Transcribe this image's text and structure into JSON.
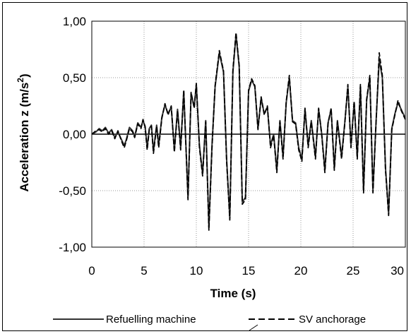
{
  "chart_data": {
    "type": "line",
    "xlabel": "Time (s)",
    "ylabel": "Acceleration z (m/s²)",
    "ylabel_base": "Acceleration z (m/s",
    "ylabel_sup": "2",
    "ylabel_close": ")",
    "xlim": [
      0,
      30
    ],
    "ylim": [
      -1.0,
      1.0
    ],
    "xticks": [
      "0",
      "5",
      "10",
      "15",
      "20",
      "25",
      "30"
    ],
    "yticks": [
      "1,00",
      "0,50",
      "0,00",
      "-0,50",
      "-1,00"
    ],
    "grid": true,
    "legend_position": "bottom",
    "series": [
      {
        "name": "Refuelling machine",
        "style": "solid",
        "color": "#333333",
        "points": [
          [
            0,
            0
          ],
          [
            0.4,
            0.02
          ],
          [
            0.7,
            0.05
          ],
          [
            1.0,
            0.03
          ],
          [
            1.3,
            0.06
          ],
          [
            1.6,
            0.01
          ],
          [
            1.9,
            0.04
          ],
          [
            2.2,
            -0.03
          ],
          [
            2.5,
            0.02
          ],
          [
            2.8,
            -0.04
          ],
          [
            3.1,
            -0.1
          ],
          [
            3.3,
            -0.05
          ],
          [
            3.6,
            0.06
          ],
          [
            3.9,
            0.03
          ],
          [
            4.1,
            -0.02
          ],
          [
            4.4,
            0.1
          ],
          [
            4.7,
            0.06
          ],
          [
            4.9,
            0.12
          ],
          [
            5.1,
            0.07
          ],
          [
            5.3,
            -0.12
          ],
          [
            5.5,
            0.05
          ],
          [
            5.7,
            0.08
          ],
          [
            5.9,
            -0.15
          ],
          [
            6.2,
            0.08
          ],
          [
            6.4,
            -0.1
          ],
          [
            6.7,
            0.15
          ],
          [
            7.0,
            0.26
          ],
          [
            7.3,
            0.18
          ],
          [
            7.6,
            0.24
          ],
          [
            7.9,
            -0.14
          ],
          [
            8.2,
            0.22
          ],
          [
            8.5,
            -0.12
          ],
          [
            8.8,
            0.38
          ],
          [
            9.2,
            -0.56
          ],
          [
            9.5,
            0.36
          ],
          [
            9.8,
            0.24
          ],
          [
            10.0,
            0.44
          ],
          [
            10.3,
            -0.1
          ],
          [
            10.6,
            -0.35
          ],
          [
            10.9,
            0.12
          ],
          [
            11.2,
            -0.82
          ],
          [
            11.5,
            -0.1
          ],
          [
            11.8,
            0.42
          ],
          [
            12.2,
            0.72
          ],
          [
            12.6,
            0.55
          ],
          [
            12.9,
            -0.22
          ],
          [
            13.2,
            -0.74
          ],
          [
            13.5,
            0.55
          ],
          [
            13.8,
            0.88
          ],
          [
            14.1,
            0.6
          ],
          [
            14.4,
            -0.6
          ],
          [
            14.7,
            -0.56
          ],
          [
            15.0,
            0.38
          ],
          [
            15.3,
            0.48
          ],
          [
            15.6,
            0.42
          ],
          [
            15.9,
            0.05
          ],
          [
            16.2,
            0.32
          ],
          [
            16.5,
            0.18
          ],
          [
            16.8,
            0.24
          ],
          [
            17.1,
            -0.1
          ],
          [
            17.4,
            0.0
          ],
          [
            17.7,
            -0.32
          ],
          [
            18.0,
            0.12
          ],
          [
            18.3,
            -0.2
          ],
          [
            18.6,
            0.28
          ],
          [
            18.9,
            0.5
          ],
          [
            19.2,
            0.12
          ],
          [
            19.5,
            0.1
          ],
          [
            19.8,
            -0.12
          ],
          [
            20.1,
            -0.22
          ],
          [
            20.4,
            0.22
          ],
          [
            20.7,
            -0.1
          ],
          [
            21.0,
            0.12
          ],
          [
            21.4,
            -0.2
          ],
          [
            21.7,
            0.22
          ],
          [
            22.0,
            0.0
          ],
          [
            22.3,
            -0.32
          ],
          [
            22.6,
            0.1
          ],
          [
            22.9,
            0.22
          ],
          [
            23.2,
            -0.3
          ],
          [
            23.5,
            0.12
          ],
          [
            23.9,
            -0.2
          ],
          [
            24.2,
            0.1
          ],
          [
            24.5,
            0.42
          ],
          [
            24.8,
            -0.1
          ],
          [
            25.1,
            0.28
          ],
          [
            25.4,
            -0.2
          ],
          [
            25.7,
            0.42
          ],
          [
            26.0,
            -0.5
          ],
          [
            26.3,
            0.3
          ],
          [
            26.6,
            0.5
          ],
          [
            26.9,
            -0.5
          ],
          [
            27.2,
            0.12
          ],
          [
            27.5,
            0.66
          ],
          [
            27.8,
            0.5
          ],
          [
            28.1,
            -0.3
          ],
          [
            28.4,
            -0.7
          ],
          [
            28.7,
            0.05
          ],
          [
            29.0,
            0.18
          ],
          [
            29.3,
            0.28
          ],
          [
            29.6,
            0.22
          ],
          [
            30.0,
            0.14
          ]
        ]
      },
      {
        "name": "SV anchorage",
        "style": "dashed",
        "color": "#000000",
        "points": [
          [
            0,
            0
          ],
          [
            0.4,
            0.03
          ],
          [
            0.7,
            0.04
          ],
          [
            1.0,
            0.02
          ],
          [
            1.3,
            0.05
          ],
          [
            1.6,
            0.0
          ],
          [
            1.9,
            0.03
          ],
          [
            2.2,
            -0.04
          ],
          [
            2.5,
            0.03
          ],
          [
            2.8,
            -0.05
          ],
          [
            3.1,
            -0.12
          ],
          [
            3.3,
            -0.06
          ],
          [
            3.6,
            0.05
          ],
          [
            3.9,
            0.02
          ],
          [
            4.1,
            -0.03
          ],
          [
            4.4,
            0.09
          ],
          [
            4.7,
            0.05
          ],
          [
            4.9,
            0.13
          ],
          [
            5.1,
            0.06
          ],
          [
            5.3,
            -0.14
          ],
          [
            5.5,
            0.04
          ],
          [
            5.7,
            0.07
          ],
          [
            5.9,
            -0.17
          ],
          [
            6.2,
            0.07
          ],
          [
            6.4,
            -0.12
          ],
          [
            6.7,
            0.14
          ],
          [
            7.0,
            0.27
          ],
          [
            7.3,
            0.17
          ],
          [
            7.6,
            0.25
          ],
          [
            7.9,
            -0.16
          ],
          [
            8.2,
            0.21
          ],
          [
            8.5,
            -0.14
          ],
          [
            8.8,
            0.39
          ],
          [
            9.2,
            -0.58
          ],
          [
            9.5,
            0.37
          ],
          [
            9.8,
            0.23
          ],
          [
            10.0,
            0.45
          ],
          [
            10.3,
            -0.12
          ],
          [
            10.6,
            -0.37
          ],
          [
            10.9,
            0.11
          ],
          [
            11.2,
            -0.85
          ],
          [
            11.5,
            -0.12
          ],
          [
            11.8,
            0.43
          ],
          [
            12.2,
            0.74
          ],
          [
            12.6,
            0.56
          ],
          [
            12.9,
            -0.24
          ],
          [
            13.2,
            -0.76
          ],
          [
            13.5,
            0.57
          ],
          [
            13.8,
            0.9
          ],
          [
            14.1,
            0.61
          ],
          [
            14.4,
            -0.62
          ],
          [
            14.7,
            -0.58
          ],
          [
            15.0,
            0.39
          ],
          [
            15.3,
            0.49
          ],
          [
            15.6,
            0.43
          ],
          [
            15.9,
            0.04
          ],
          [
            16.2,
            0.33
          ],
          [
            16.5,
            0.17
          ],
          [
            16.8,
            0.25
          ],
          [
            17.1,
            -0.12
          ],
          [
            17.4,
            -0.01
          ],
          [
            17.7,
            -0.34
          ],
          [
            18.0,
            0.11
          ],
          [
            18.3,
            -0.22
          ],
          [
            18.6,
            0.29
          ],
          [
            18.9,
            0.52
          ],
          [
            19.2,
            0.11
          ],
          [
            19.5,
            0.09
          ],
          [
            19.8,
            -0.14
          ],
          [
            20.1,
            -0.24
          ],
          [
            20.4,
            0.23
          ],
          [
            20.7,
            -0.12
          ],
          [
            21.0,
            0.11
          ],
          [
            21.4,
            -0.22
          ],
          [
            21.7,
            0.23
          ],
          [
            22.0,
            -0.01
          ],
          [
            22.3,
            -0.34
          ],
          [
            22.6,
            0.09
          ],
          [
            22.9,
            0.23
          ],
          [
            23.2,
            -0.32
          ],
          [
            23.5,
            0.11
          ],
          [
            23.9,
            -0.22
          ],
          [
            24.2,
            0.09
          ],
          [
            24.5,
            0.44
          ],
          [
            24.8,
            -0.12
          ],
          [
            25.1,
            0.29
          ],
          [
            25.4,
            -0.22
          ],
          [
            25.7,
            0.44
          ],
          [
            26.0,
            -0.52
          ],
          [
            26.3,
            0.31
          ],
          [
            26.6,
            0.52
          ],
          [
            26.9,
            -0.52
          ],
          [
            27.2,
            0.11
          ],
          [
            27.5,
            0.72
          ],
          [
            27.8,
            0.52
          ],
          [
            28.1,
            -0.32
          ],
          [
            28.4,
            -0.72
          ],
          [
            28.7,
            0.04
          ],
          [
            29.0,
            0.17
          ],
          [
            29.3,
            0.3
          ],
          [
            29.6,
            0.21
          ],
          [
            30.0,
            0.13
          ]
        ]
      }
    ]
  }
}
